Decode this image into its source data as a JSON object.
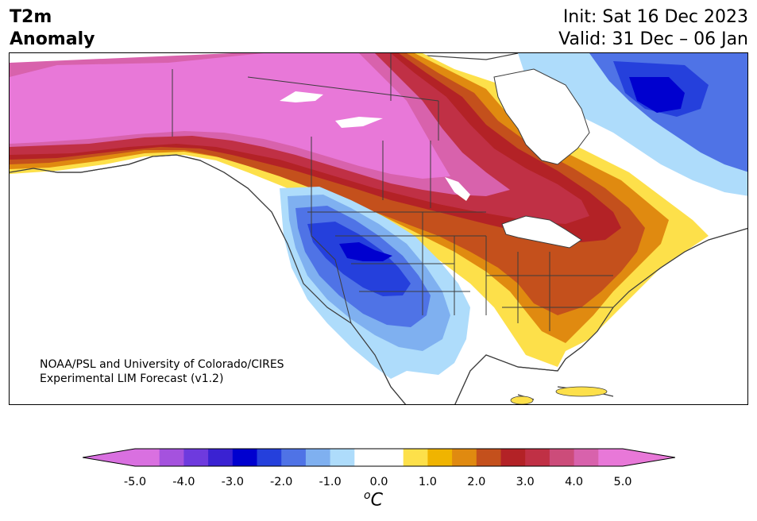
{
  "header": {
    "variable": "T2m",
    "subtitle": "Anomaly",
    "init": "Init: Sat 16 Dec 2023",
    "valid": "Valid: 31 Dec – 06 Jan"
  },
  "credit": {
    "line1": "NOAA/PSL and University of Colorado/CIRES",
    "line2": "Experimental LIM Forecast (v1.2)"
  },
  "colorbar": {
    "ticks": [
      "-5.0",
      "-4.0",
      "-3.0",
      "-2.0",
      "-1.0",
      "0.0",
      "1.0",
      "2.0",
      "3.0",
      "4.0",
      "5.0"
    ],
    "unit_sup": "o",
    "unit": "C",
    "colors": [
      "#d970e0",
      "#a552de",
      "#6e3ade",
      "#3a22d2",
      "#0000cf",
      "#2540dc",
      "#4f73e6",
      "#7fb0f0",
      "#aedcfb",
      "#ffffff",
      "#ffffff",
      "#fde04a",
      "#f0b400",
      "#e08a10",
      "#c4501c",
      "#b32226",
      "#c03045",
      "#cc4c7a",
      "#d862ac",
      "#e878d8"
    ],
    "min_color": "#d970e0",
    "max_color": "#e878d8"
  },
  "map": {
    "land": "#ffffff",
    "outline": "#3c3c3c",
    "regions": [
      {
        "name": "alaska-canada-warm",
        "anomaly": 5.0
      },
      {
        "name": "northern-plains-warm",
        "anomaly": 4.0
      },
      {
        "name": "great-lakes-warm",
        "anomaly": 3.0
      },
      {
        "name": "southeast-warm",
        "anomaly": 2.0
      },
      {
        "name": "gulf-coast-warm",
        "anomaly": 1.0
      },
      {
        "name": "intermountain-west-cold",
        "anomaly": -3.0
      },
      {
        "name": "labrador-cold",
        "anomaly": -3.0
      },
      {
        "name": "baffin-cold",
        "anomaly": -1.0
      }
    ]
  }
}
